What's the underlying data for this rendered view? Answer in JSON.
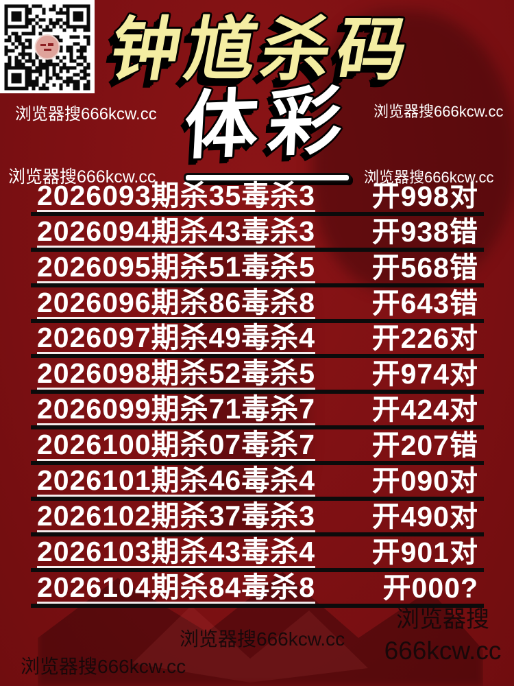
{
  "poster": {
    "background_color": "#7D1013",
    "header": {
      "title": "钟馗杀码",
      "subtitle": "体彩",
      "title_color": "#F4EDA2",
      "subtitle_color": "#FFFFFF"
    },
    "watermark": {
      "top_left": "浏览器搜666kcw.cc",
      "mid_left": "浏览器搜666kcw.cc",
      "top_right": "浏览器搜666kcw.cc",
      "mid_right": "浏览器搜666kcw.cc",
      "bottom_center": "浏览器搜666kcw.cc",
      "bottom_left": "浏览器搜666kcw.cc",
      "bottom_right_line1": "浏览器搜",
      "bottom_right_line2": "666kcw.cc"
    },
    "qr": {
      "icon": "qr-code",
      "logo_color": "#DFA39B"
    },
    "records": [
      {
        "label": "2026093期杀35毒杀3",
        "result": "开998对"
      },
      {
        "label": "2026094期杀43毒杀3",
        "result": "开938错"
      },
      {
        "label": "2026095期杀51毒杀5",
        "result": "开568错"
      },
      {
        "label": "2026096期杀86毒杀8",
        "result": "开643错"
      },
      {
        "label": "2026097期杀49毒杀4",
        "result": "开226对"
      },
      {
        "label": "2026098期杀52毒杀5",
        "result": "开974对"
      },
      {
        "label": "2026099期杀71毒杀7",
        "result": "开424对"
      },
      {
        "label": "2026100期杀07毒杀7",
        "result": "开207错"
      },
      {
        "label": "2026101期杀46毒杀4",
        "result": "开090对"
      },
      {
        "label": "2026102期杀37毒杀3",
        "result": "开490对"
      },
      {
        "label": "2026103期杀43毒杀4",
        "result": "开901对"
      },
      {
        "label": "2026104期杀84毒杀8",
        "result": "开000?"
      }
    ],
    "colors": {
      "row_text": "#FFFFFF",
      "divider": "#0B0B0B",
      "dark_watermark": "#120A0B"
    }
  }
}
